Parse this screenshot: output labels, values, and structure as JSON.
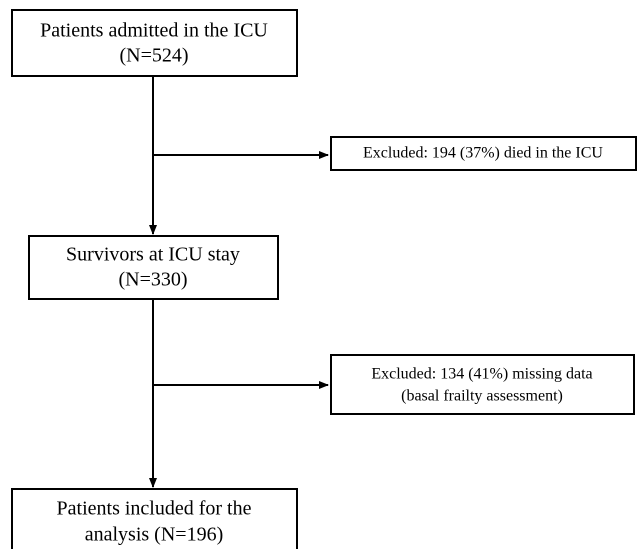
{
  "nodes": [
    {
      "lines": [
        "Patients admitted in the ICU",
        "(N=524)"
      ]
    },
    {
      "lines": [
        "Excluded: 194 (37%) died in the ICU"
      ]
    },
    {
      "lines": [
        "Survivors at ICU stay",
        "(N=330)"
      ]
    },
    {
      "lines": [
        "Excluded: 134 (41%) missing data",
        "(basal frailty assessment)"
      ]
    },
    {
      "lines": [
        "Patients included for the",
        "analysis (N=196)"
      ]
    }
  ]
}
